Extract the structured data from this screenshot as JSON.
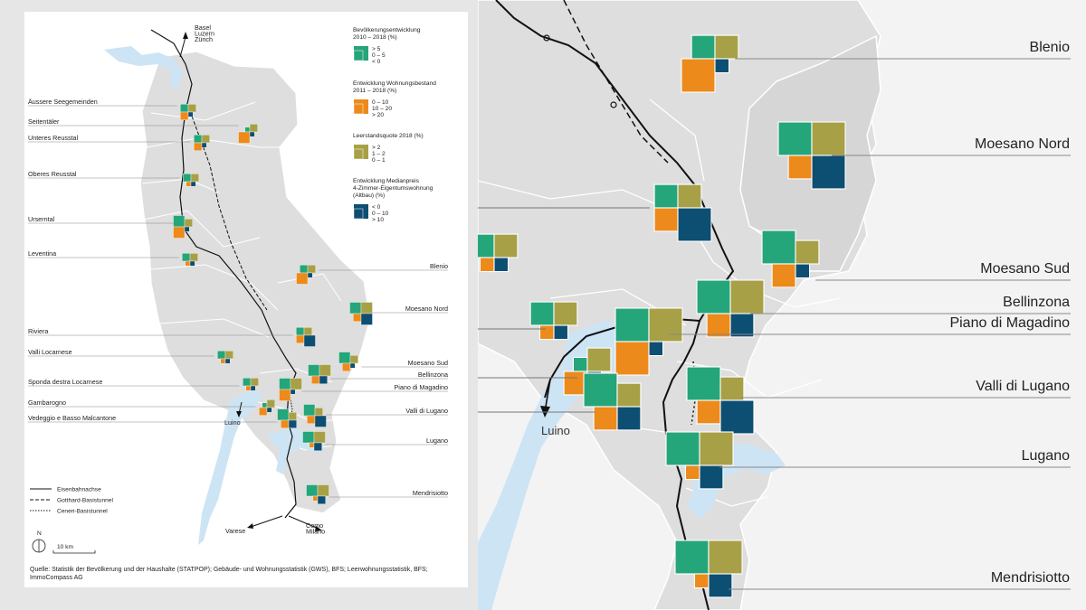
{
  "colors": {
    "population": "#25a57a",
    "housing": "#ec8a1b",
    "vacancy": "#a7a046",
    "price": "#0d4e73",
    "lake": "#cde4f5",
    "relief": "#dcdcdc",
    "outside": "#f2f2f2"
  },
  "arrows": {
    "north": "Basel\nLuzern\nZürich",
    "luino": "Luino",
    "varese": "Varese",
    "como": "Como\nMilano"
  },
  "legend": {
    "population": {
      "title": "Bevölkerungsentwicklung\n2010 – 2018 (%)",
      "items": [
        "> 5",
        "0 – 5",
        "< 0"
      ]
    },
    "housing": {
      "title": "Entwicklung Wohnungsbestand\n2011 – 2018 (%)",
      "items": [
        "0 – 10",
        "10 – 20",
        "> 20"
      ]
    },
    "vacancy": {
      "title": "Leerstandsquote 2018 (%)",
      "items": [
        "> 2",
        "1 – 2",
        "0 – 1"
      ]
    },
    "price": {
      "title": "Entwicklung Medianpreis\n4-Zimmer-Eigentumswohnung\n(Altbau) (%)",
      "items": [
        "< 0",
        "0 – 10",
        "> 10"
      ]
    },
    "lines": [
      "Eisenbahnachse",
      "Gotthard-Basistunnel",
      "Ceneri-Basistunnel"
    ],
    "north_label": "N",
    "scale_label": "10 km"
  },
  "source": "Quelle: Statistik der Bevölkerung und der Haushalte (STATPOP); Gebäude- und Wohnungsstatistik (GWS), BFS; Leerwohnungsstatistik, BFS; ImmoCompass AG",
  "regions": [
    {
      "name": "Äussere Seegemeinden",
      "side": "left",
      "pop": 2,
      "hous": 2,
      "vac": 2,
      "price": 1
    },
    {
      "name": "Seitentäler",
      "side": "left",
      "pop": 1,
      "hous": 3,
      "vac": 2,
      "price": 1
    },
    {
      "name": "Unteres Reusstal",
      "side": "left",
      "pop": 2,
      "hous": 2,
      "vac": 2,
      "price": 1
    },
    {
      "name": "Oberes Reusstal",
      "side": "left",
      "pop": 2,
      "hous": 1,
      "vac": 2,
      "price": 1
    },
    {
      "name": "Urserntal",
      "side": "left",
      "pop": 3,
      "hous": 3,
      "vac": 2,
      "price": 1
    },
    {
      "name": "Leventina",
      "side": "left",
      "pop": 2,
      "hous": 1,
      "vac": 2,
      "price": 1
    },
    {
      "name": "Blenio",
      "side": "right",
      "pop": 2,
      "hous": 3,
      "vac": 2,
      "price": 1
    },
    {
      "name": "Moesano Nord",
      "side": "right",
      "pop": 3,
      "hous": 2,
      "vac": 3,
      "price": 3
    },
    {
      "name": "Riviera",
      "side": "left",
      "pop": 2,
      "hous": 2,
      "vac": 2,
      "price": 3
    },
    {
      "name": "Valli Locarnese",
      "side": "left",
      "pop": 2,
      "hous": 1,
      "vac": 2,
      "price": 1
    },
    {
      "name": "Moesano Sud",
      "side": "right",
      "pop": 3,
      "hous": 2,
      "vac": 2,
      "price": 1
    },
    {
      "name": "Bellinzona",
      "side": "right",
      "pop": 3,
      "hous": 2,
      "vac": 3,
      "price": 2
    },
    {
      "name": "Sponda destra Locarnese",
      "side": "left",
      "pop": 2,
      "hous": 1,
      "vac": 2,
      "price": 1
    },
    {
      "name": "Piano di Magadino",
      "side": "right",
      "pop": 3,
      "hous": 3,
      "vac": 3,
      "price": 1
    },
    {
      "name": "Gambarogno",
      "side": "left",
      "pop": 1,
      "hous": 2,
      "vac": 2,
      "price": 1
    },
    {
      "name": "Valli di Lugano",
      "side": "right",
      "pop": 3,
      "hous": 2,
      "vac": 2,
      "price": 3
    },
    {
      "name": "Vedeggio e Basso Malcantone",
      "side": "left",
      "pop": 3,
      "hous": 2,
      "vac": 2,
      "price": 2
    },
    {
      "name": "Lugano",
      "side": "right",
      "pop": 3,
      "hous": 1,
      "vac": 3,
      "price": 2
    },
    {
      "name": "Mendrisiotto",
      "side": "right",
      "pop": 3,
      "hous": 1,
      "vac": 3,
      "price": 2
    }
  ]
}
